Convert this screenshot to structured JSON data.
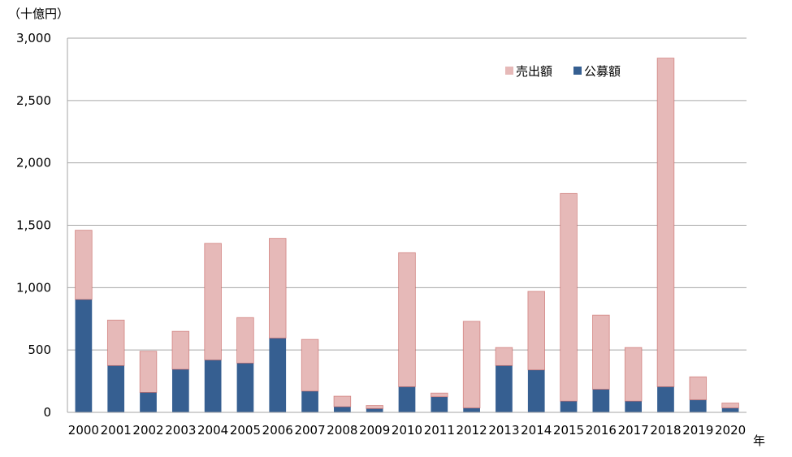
{
  "chart_data": {
    "type": "bar",
    "stacked": true,
    "y_unit_label": "（十億円）",
    "x_unit_label": "年",
    "ylim": [
      0,
      3000
    ],
    "yticks": [
      "0",
      "500",
      "1,000",
      "1,500",
      "2,000",
      "2,500",
      "3,000"
    ],
    "ytick_values": [
      0,
      500,
      1000,
      1500,
      2000,
      2500,
      3000
    ],
    "grid": true,
    "legend_position": "top-right",
    "categories": [
      "2000",
      "2001",
      "2002",
      "2003",
      "2004",
      "2005",
      "2006",
      "2007",
      "2008",
      "2009",
      "2010",
      "2011",
      "2012",
      "2013",
      "2014",
      "2015",
      "2016",
      "2017",
      "2018",
      "2019",
      "2020"
    ],
    "series": [
      {
        "name": "公募額",
        "color": "#365F91",
        "values": [
          905,
          375,
          160,
          345,
          420,
          395,
          595,
          170,
          45,
          30,
          205,
          125,
          35,
          375,
          340,
          90,
          185,
          90,
          205,
          100,
          35
        ]
      },
      {
        "name": "売出額",
        "color": "#E6B9B8",
        "values": [
          555,
          365,
          330,
          305,
          935,
          365,
          800,
          415,
          85,
          25,
          1075,
          30,
          695,
          145,
          630,
          1665,
          595,
          430,
          2635,
          185,
          40
        ]
      }
    ],
    "legend_order": [
      "売出額",
      "公募額"
    ]
  }
}
